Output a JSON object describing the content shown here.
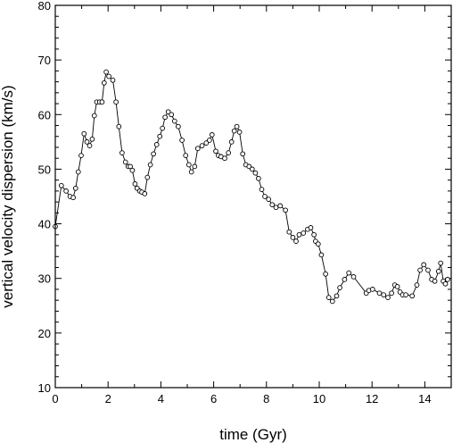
{
  "chart_data": {
    "type": "line",
    "title": "",
    "xlabel": "time (Gyr)",
    "ylabel": "vertical velocity dispersion (km/s)",
    "xlim": [
      0,
      15
    ],
    "ylim": [
      10,
      80
    ],
    "x_ticks": [
      0,
      2,
      4,
      6,
      8,
      10,
      12,
      14
    ],
    "y_ticks": [
      10,
      20,
      30,
      40,
      50,
      60,
      70,
      80
    ],
    "x_tick_labels": [
      "0",
      "2",
      "4",
      "6",
      "8",
      "10",
      "12",
      "14"
    ],
    "y_tick_labels": [
      "10",
      "20",
      "30",
      "40",
      "50",
      "60",
      "70",
      "80"
    ],
    "grid": false,
    "marker": "open-circle",
    "colors": {
      "line": "#000000",
      "marker_edge": "#000000",
      "marker_fill": "#ffffff"
    },
    "series": [
      {
        "x": [
          0.0,
          0.23,
          0.41,
          0.56,
          0.68,
          0.77,
          0.87,
          0.98,
          1.09,
          1.2,
          1.3,
          1.4,
          1.48,
          1.57,
          1.68,
          1.77,
          1.85,
          1.93,
          2.03,
          2.18,
          2.3,
          2.41,
          2.53,
          2.66,
          2.76,
          2.84,
          2.92,
          3.02,
          3.1,
          3.2,
          3.28,
          3.39,
          3.49,
          3.6,
          3.72,
          3.84,
          3.96,
          4.06,
          4.16,
          4.28,
          4.4,
          4.52,
          4.66,
          4.8,
          4.94,
          5.06,
          5.16,
          5.28,
          5.4,
          5.56,
          5.72,
          5.84,
          5.94,
          6.08,
          6.18,
          6.28,
          6.42,
          6.56,
          6.68,
          6.78,
          6.88,
          6.98,
          7.1,
          7.22,
          7.34,
          7.46,
          7.58,
          7.7,
          7.82,
          7.94,
          8.08,
          8.22,
          8.36,
          8.52,
          8.72,
          8.86,
          9.0,
          9.12,
          9.24,
          9.4,
          9.56,
          9.68,
          9.8,
          9.86,
          9.96,
          10.08,
          10.24,
          10.36,
          10.5,
          10.66,
          10.78,
          10.96,
          11.12,
          11.3,
          11.78,
          11.88,
          12.02,
          12.28,
          12.44,
          12.6,
          12.74,
          12.86,
          12.96,
          13.06,
          13.16,
          13.28,
          13.52,
          13.7,
          13.82,
          13.96,
          14.12,
          14.26,
          14.38,
          14.52,
          14.6,
          14.7,
          14.78,
          14.86
        ],
        "y": [
          39.5,
          47.0,
          46.0,
          45.0,
          44.8,
          46.5,
          49.5,
          52.5,
          56.5,
          55.0,
          54.3,
          55.5,
          59.8,
          62.3,
          62.3,
          62.3,
          65.8,
          67.8,
          67.0,
          66.3,
          62.3,
          57.8,
          53.0,
          51.3,
          50.5,
          50.5,
          49.8,
          47.3,
          46.5,
          46.0,
          45.8,
          45.5,
          48.5,
          50.8,
          52.8,
          54.5,
          56.0,
          57.5,
          59.5,
          60.5,
          60.0,
          58.8,
          57.8,
          55.3,
          52.5,
          50.8,
          49.5,
          50.5,
          53.8,
          54.3,
          54.8,
          55.3,
          56.3,
          53.3,
          52.5,
          52.3,
          52.0,
          53.0,
          55.0,
          57.0,
          57.8,
          56.8,
          52.8,
          50.8,
          50.5,
          50.0,
          49.3,
          48.3,
          46.3,
          45.0,
          44.5,
          43.5,
          43.0,
          43.3,
          42.5,
          38.5,
          37.5,
          36.8,
          38.0,
          38.3,
          39.0,
          39.3,
          38.0,
          36.8,
          36.3,
          34.3,
          30.8,
          26.5,
          25.8,
          26.8,
          28.3,
          29.8,
          31.0,
          30.3,
          27.3,
          27.8,
          28.0,
          27.3,
          27.0,
          26.5,
          27.3,
          28.8,
          28.5,
          27.5,
          27.0,
          27.0,
          26.8,
          28.8,
          31.5,
          32.5,
          31.5,
          29.8,
          29.5,
          31.3,
          32.8,
          29.5,
          29.0,
          29.8
        ]
      }
    ]
  }
}
